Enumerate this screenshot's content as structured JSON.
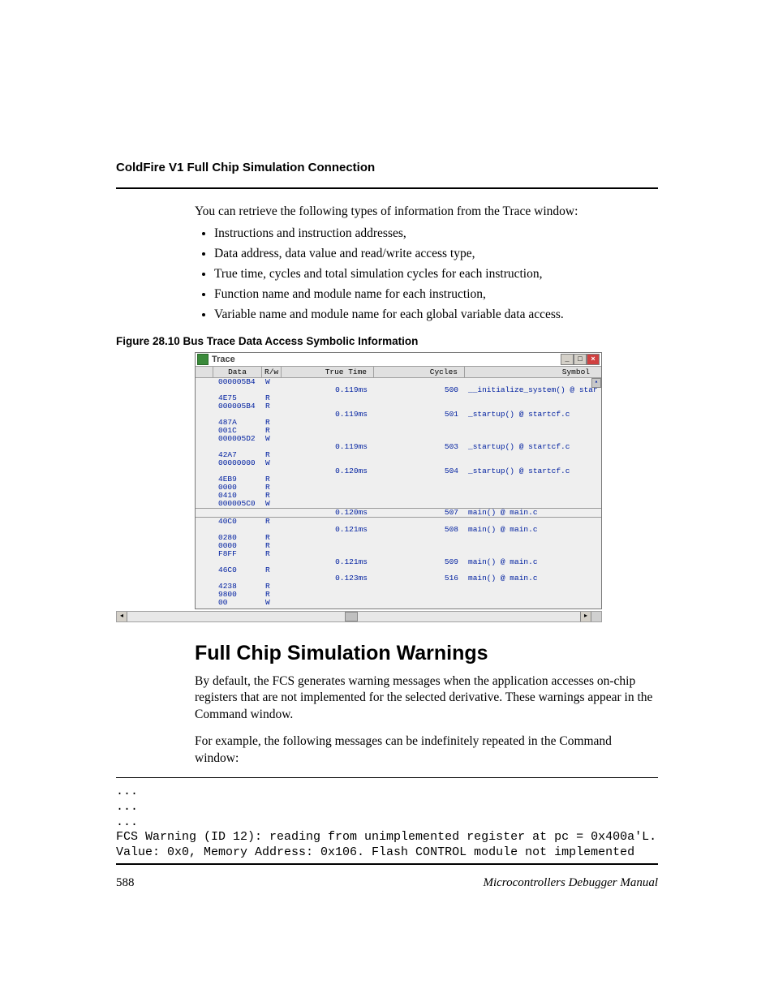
{
  "header": {
    "title": "ColdFire V1 Full Chip Simulation Connection"
  },
  "intro": "You can retrieve the following types of information from the Trace window:",
  "bullets": [
    "Instructions and instruction addresses,",
    "Data address, data value and read/write access type,",
    "True time, cycles and total simulation cycles for each instruction,",
    "Function name and module name for each instruction,",
    "Variable name and module name for each global variable data access."
  ],
  "figure_caption": "Figure 28.10  Bus Trace Data Access Symbolic Information",
  "trace_window": {
    "title": "Trace",
    "icon_color": "#3a8a3a",
    "background_color": "#efefef",
    "row_text_color": "#0020a0",
    "header_bg": "#e0e0e0",
    "columns": [
      "",
      "Data",
      "R/w",
      "True Time",
      "Cycles",
      "Symbol"
    ],
    "rows": [
      {
        "data": "000005B4",
        "rw": "W",
        "time": "",
        "cyc": "",
        "sym": "",
        "sep": false
      },
      {
        "data": "",
        "rw": "",
        "time": "0.119ms",
        "cyc": "500",
        "sym": "__initialize_system() @ star",
        "sep": false
      },
      {
        "data": "4E75",
        "rw": "R",
        "time": "",
        "cyc": "",
        "sym": "",
        "sep": false
      },
      {
        "data": "000005B4",
        "rw": "R",
        "time": "",
        "cyc": "",
        "sym": "",
        "sep": false
      },
      {
        "data": "",
        "rw": "",
        "time": "0.119ms",
        "cyc": "501",
        "sym": "_startup() @ startcf.c",
        "sep": false
      },
      {
        "data": "487A",
        "rw": "R",
        "time": "",
        "cyc": "",
        "sym": "",
        "sep": false
      },
      {
        "data": "001C",
        "rw": "R",
        "time": "",
        "cyc": "",
        "sym": "",
        "sep": false
      },
      {
        "data": "000005D2",
        "rw": "W",
        "time": "",
        "cyc": "",
        "sym": "",
        "sep": false
      },
      {
        "data": "",
        "rw": "",
        "time": "0.119ms",
        "cyc": "503",
        "sym": "_startup() @ startcf.c",
        "sep": false
      },
      {
        "data": "42A7",
        "rw": "R",
        "time": "",
        "cyc": "",
        "sym": "",
        "sep": false
      },
      {
        "data": "00000000",
        "rw": "W",
        "time": "",
        "cyc": "",
        "sym": "",
        "sep": false
      },
      {
        "data": "",
        "rw": "",
        "time": "0.120ms",
        "cyc": "504",
        "sym": "_startup() @ startcf.c",
        "sep": false
      },
      {
        "data": "4EB9",
        "rw": "R",
        "time": "",
        "cyc": "",
        "sym": "",
        "sep": false
      },
      {
        "data": "0000",
        "rw": "R",
        "time": "",
        "cyc": "",
        "sym": "",
        "sep": false
      },
      {
        "data": "0410",
        "rw": "R",
        "time": "",
        "cyc": "",
        "sym": "",
        "sep": false
      },
      {
        "data": "000005C0",
        "rw": "W",
        "time": "",
        "cyc": "",
        "sym": "",
        "sep": true
      },
      {
        "data": "",
        "rw": "",
        "time": "0.120ms",
        "cyc": "507",
        "sym": "main() @ main.c",
        "sep": true
      },
      {
        "data": "40C0",
        "rw": "R",
        "time": "",
        "cyc": "",
        "sym": "",
        "sep": false
      },
      {
        "data": "",
        "rw": "",
        "time": "0.121ms",
        "cyc": "508",
        "sym": "main() @ main.c",
        "sep": false
      },
      {
        "data": "0280",
        "rw": "R",
        "time": "",
        "cyc": "",
        "sym": "",
        "sep": false
      },
      {
        "data": "0000",
        "rw": "R",
        "time": "",
        "cyc": "",
        "sym": "",
        "sep": false
      },
      {
        "data": "F8FF",
        "rw": "R",
        "time": "",
        "cyc": "",
        "sym": "",
        "sep": false
      },
      {
        "data": "",
        "rw": "",
        "time": "0.121ms",
        "cyc": "509",
        "sym": "main() @ main.c",
        "sep": false
      },
      {
        "data": "46C0",
        "rw": "R",
        "time": "",
        "cyc": "",
        "sym": "",
        "sep": false
      },
      {
        "data": "",
        "rw": "",
        "time": "0.123ms",
        "cyc": "516",
        "sym": "main() @ main.c",
        "sep": false
      },
      {
        "data": "4238",
        "rw": "R",
        "time": "",
        "cyc": "",
        "sym": "",
        "sep": false
      },
      {
        "data": "9800",
        "rw": "R",
        "time": "",
        "cyc": "",
        "sym": "",
        "sep": false
      },
      {
        "data": "00",
        "rw": "W",
        "time": "",
        "cyc": "",
        "sym": "",
        "sep": false
      }
    ]
  },
  "section": {
    "heading": "Full Chip Simulation Warnings",
    "para1": "By default, the FCS generates warning messages when the application accesses on-chip registers that are not implemented for the selected derivative. These warnings appear in the Command window.",
    "para2": "For example, the following messages can be indefinitely repeated in the Command window:"
  },
  "code": "...\n...\n...\nFCS Warning (ID 12): reading from unimplemented register at pc = 0x400a'L. Value: 0x0, Memory Address: 0x106. Flash CONTROL module not implemented",
  "footer": {
    "page_number": "588",
    "manual_title": "Microcontrollers Debugger Manual"
  }
}
